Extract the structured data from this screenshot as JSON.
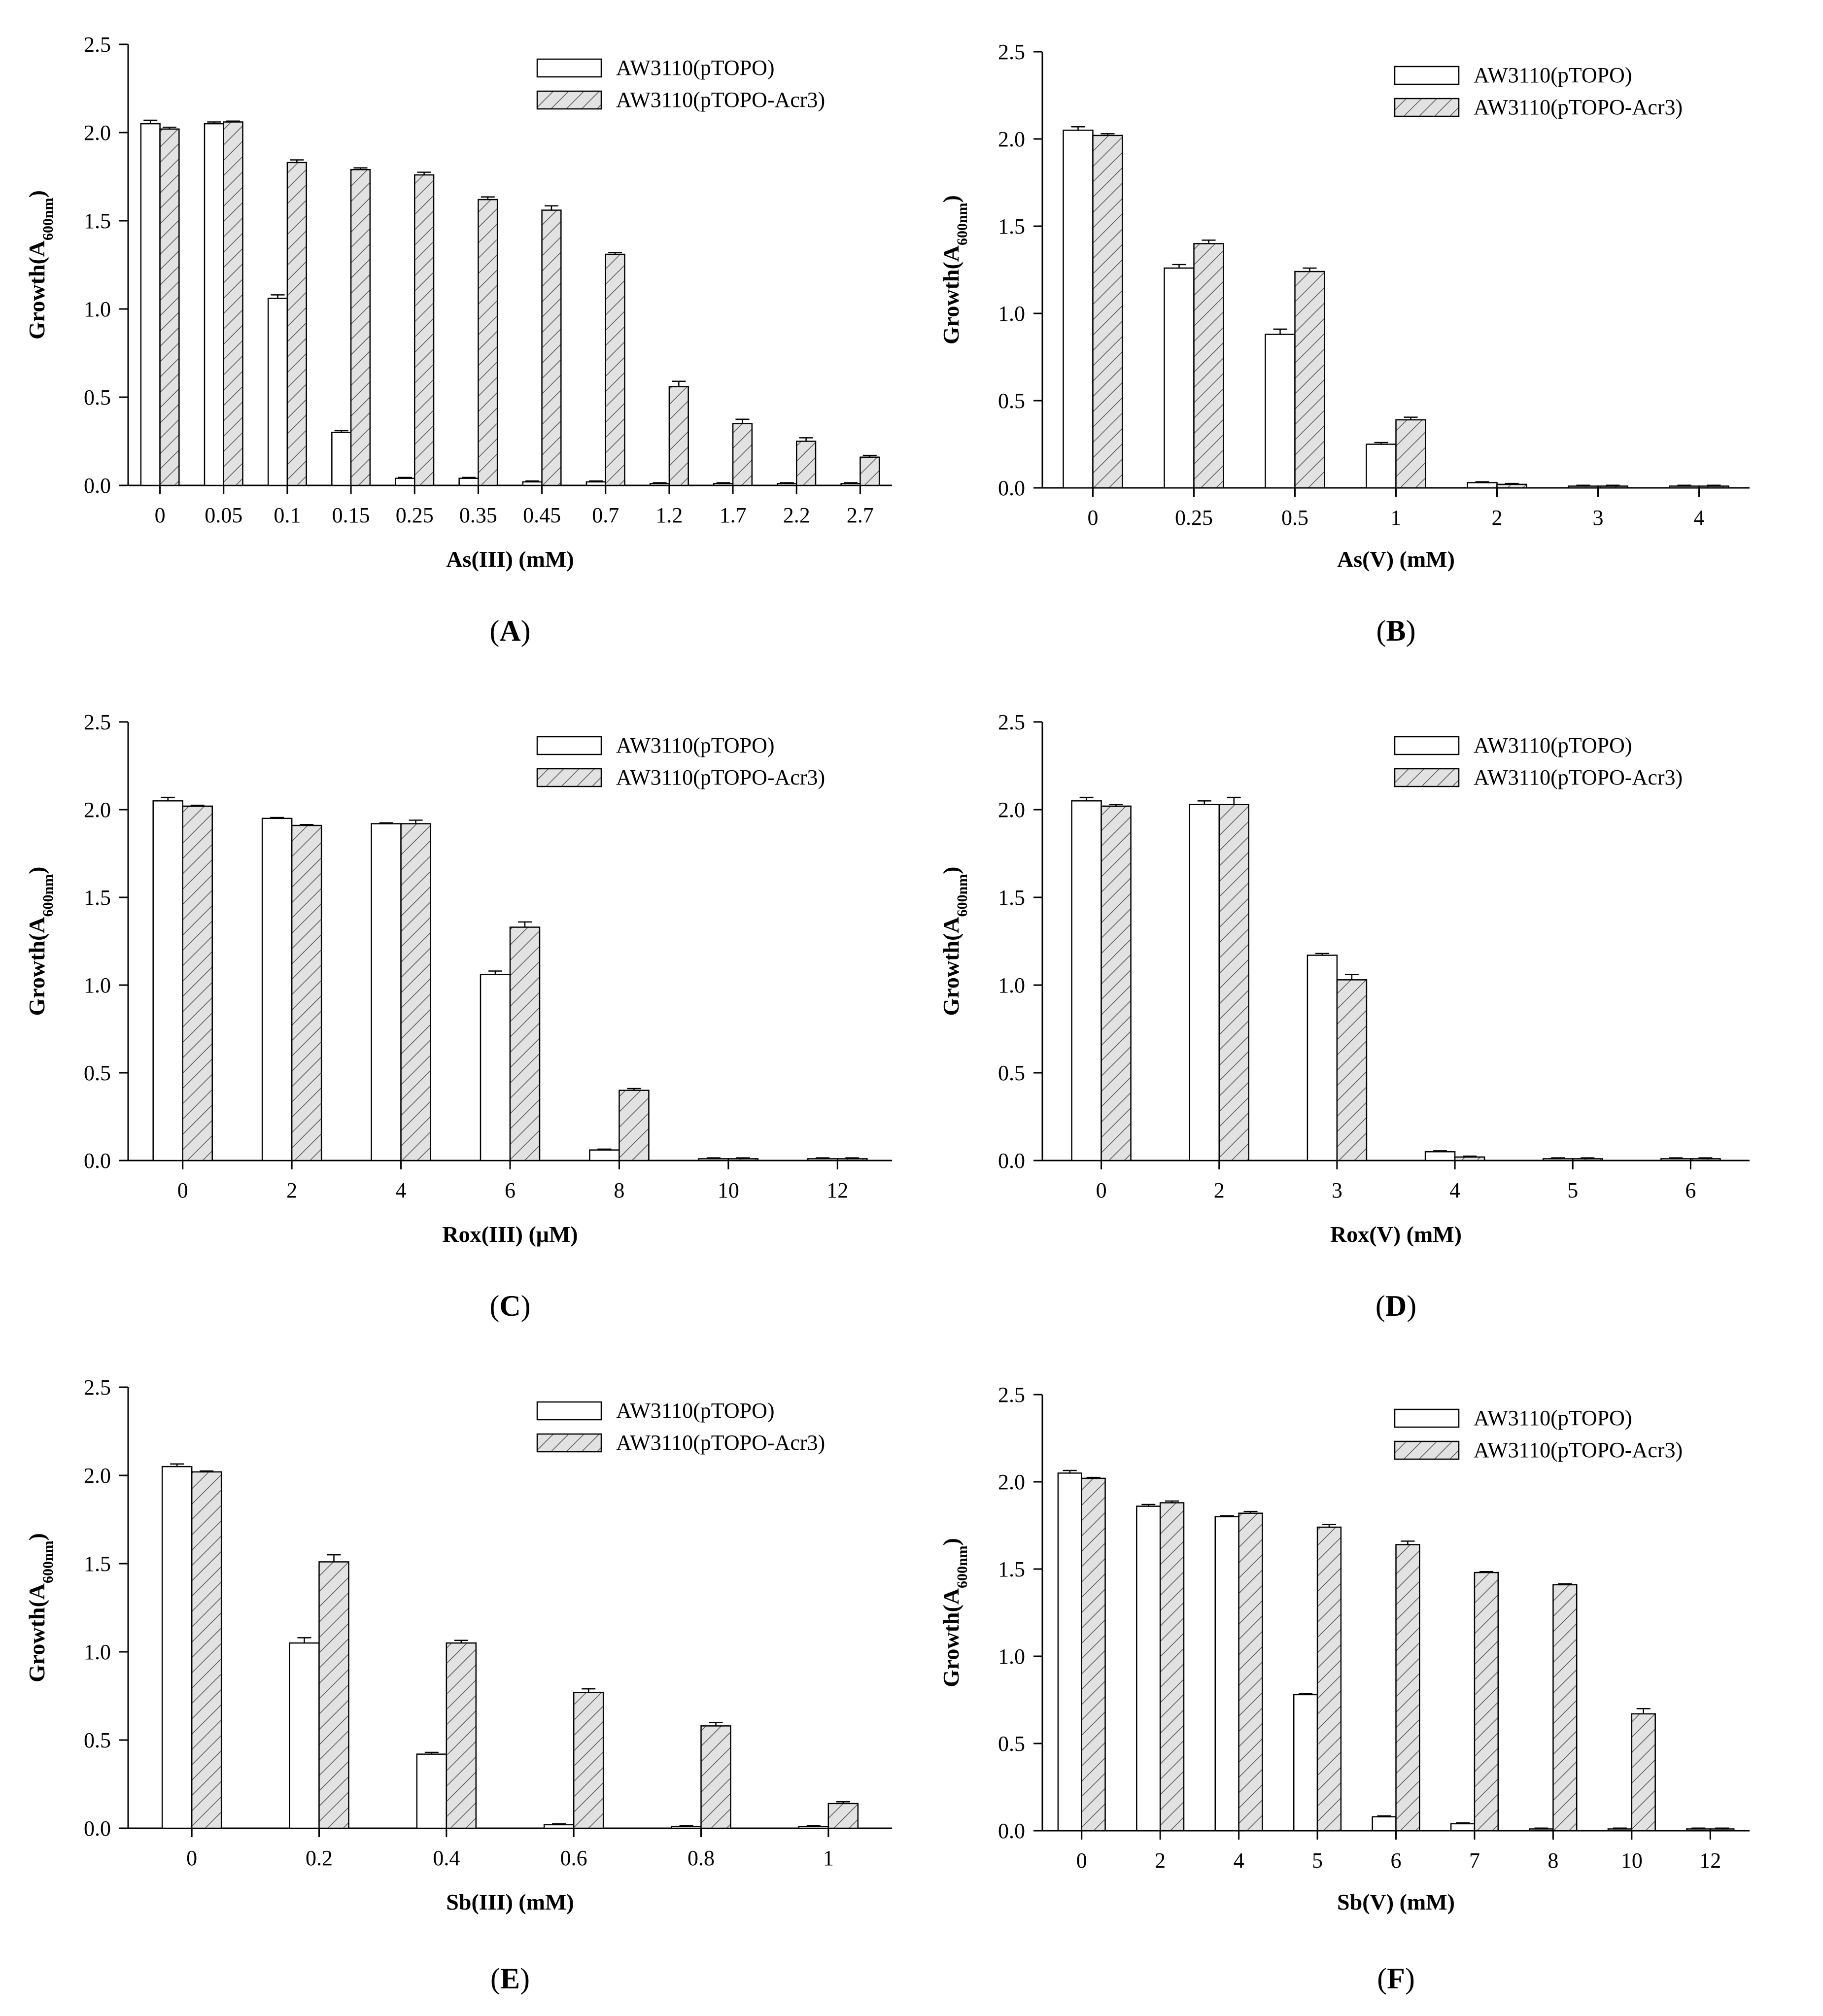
{
  "figure": {
    "legend": {
      "series": [
        "AW3110(pTOPO)",
        "AW3110(pTOPO-Acr3)"
      ]
    },
    "ylabel_main": "Growth(A",
    "ylabel_sub": "600nm",
    "ylabel_close": ")"
  },
  "chart_data": [
    {
      "panel": "A",
      "panel_label_pre": "(",
      "panel_label_letter": "A",
      "panel_label_post": ")",
      "type": "bar",
      "xlabel": "As(III) (mM)",
      "ylabel": "Growth(A600nm)",
      "ylim": [
        0,
        2.5
      ],
      "yticks": [
        "0.0",
        "0.5",
        "1.0",
        "1.5",
        "2.0",
        "2.5"
      ],
      "categories": [
        "0",
        "0.05",
        "0.1",
        "0.15",
        "0.25",
        "0.35",
        "0.45",
        "0.7",
        "1.2",
        "1.7",
        "2.2",
        "2.7"
      ],
      "series": [
        {
          "name": "AW3110(pTOPO)",
          "values": [
            2.05,
            2.05,
            1.06,
            0.3,
            0.04,
            0.04,
            0.02,
            0.02,
            0.01,
            0.01,
            0.01,
            0.01
          ],
          "errors": [
            0.02,
            0.01,
            0.02,
            0.01,
            0.005,
            0.005,
            0.005,
            0.005,
            0.005,
            0.005,
            0.005,
            0.005
          ]
        },
        {
          "name": "AW3110(pTOPO-Acr3)",
          "values": [
            2.02,
            2.06,
            1.83,
            1.79,
            1.76,
            1.62,
            1.56,
            1.31,
            0.56,
            0.35,
            0.25,
            0.16
          ],
          "errors": [
            0.01,
            0.005,
            0.015,
            0.01,
            0.015,
            0.015,
            0.025,
            0.01,
            0.03,
            0.025,
            0.02,
            0.01
          ]
        }
      ]
    },
    {
      "panel": "B",
      "panel_label_pre": "(",
      "panel_label_letter": "B",
      "panel_label_post": ")",
      "type": "bar",
      "xlabel": "As(V) (mM)",
      "ylabel": "Growth(A600nm)",
      "ylim": [
        0,
        2.5
      ],
      "yticks": [
        "0.0",
        "0.5",
        "1.0",
        "1.5",
        "2.0",
        "2.5"
      ],
      "categories": [
        "0",
        "0.25",
        "0.5",
        "1",
        "2",
        "3",
        "4"
      ],
      "series": [
        {
          "name": "AW3110(pTOPO)",
          "values": [
            2.05,
            1.26,
            0.88,
            0.25,
            0.03,
            0.01,
            0.01
          ],
          "errors": [
            0.02,
            0.02,
            0.03,
            0.01,
            0.005,
            0.005,
            0.005
          ]
        },
        {
          "name": "AW3110(pTOPO-Acr3)",
          "values": [
            2.02,
            1.4,
            1.24,
            0.39,
            0.02,
            0.01,
            0.01
          ],
          "errors": [
            0.01,
            0.02,
            0.02,
            0.015,
            0.005,
            0.005,
            0.005
          ]
        }
      ]
    },
    {
      "panel": "C",
      "panel_label_pre": "(",
      "panel_label_letter": "C",
      "panel_label_post": ")",
      "type": "bar",
      "xlabel": "Rox(III) (μM)",
      "ylabel": "Growth(A600nm)",
      "ylim": [
        0,
        2.5
      ],
      "yticks": [
        "0.0",
        "0.5",
        "1.0",
        "1.5",
        "2.0",
        "2.5"
      ],
      "categories": [
        "0",
        "2",
        "4",
        "6",
        "8",
        "10",
        "12"
      ],
      "series": [
        {
          "name": "AW3110(pTOPO)",
          "values": [
            2.05,
            1.95,
            1.92,
            1.06,
            0.06,
            0.01,
            0.01
          ],
          "errors": [
            0.02,
            0.005,
            0.005,
            0.02,
            0.005,
            0.005,
            0.005
          ]
        },
        {
          "name": "AW3110(pTOPO-Acr3)",
          "values": [
            2.02,
            1.91,
            1.92,
            1.33,
            0.4,
            0.01,
            0.01
          ],
          "errors": [
            0.005,
            0.005,
            0.02,
            0.03,
            0.01,
            0.005,
            0.005
          ]
        }
      ]
    },
    {
      "panel": "D",
      "panel_label_pre": "(",
      "panel_label_letter": "D",
      "panel_label_post": ")",
      "type": "bar",
      "xlabel": "Rox(V) (mM)",
      "ylabel": "Growth(A600nm)",
      "ylim": [
        0,
        2.5
      ],
      "yticks": [
        "0.0",
        "0.5",
        "1.0",
        "1.5",
        "2.0",
        "2.5"
      ],
      "categories": [
        "0",
        "2",
        "3",
        "4",
        "5",
        "6"
      ],
      "series": [
        {
          "name": "AW3110(pTOPO)",
          "values": [
            2.05,
            2.03,
            1.17,
            0.05,
            0.01,
            0.01
          ],
          "errors": [
            0.02,
            0.02,
            0.01,
            0.005,
            0.005,
            0.005
          ]
        },
        {
          "name": "AW3110(pTOPO-Acr3)",
          "values": [
            2.02,
            2.03,
            1.03,
            0.02,
            0.01,
            0.01
          ],
          "errors": [
            0.01,
            0.04,
            0.03,
            0.005,
            0.005,
            0.005
          ]
        }
      ]
    },
    {
      "panel": "E",
      "panel_label_pre": "(",
      "panel_label_letter": "E",
      "panel_label_post": ")",
      "type": "bar",
      "xlabel": "Sb(III) (mM)",
      "ylabel": "Growth(A600nm)",
      "ylim": [
        0,
        2.5
      ],
      "yticks": [
        "0.0",
        "0.5",
        "1.0",
        "1.5",
        "2.0",
        "2.5"
      ],
      "categories": [
        "0",
        "0.2",
        "0.4",
        "0.6",
        "0.8",
        "1"
      ],
      "series": [
        {
          "name": "AW3110(pTOPO)",
          "values": [
            2.05,
            1.05,
            0.42,
            0.02,
            0.01,
            0.01
          ],
          "errors": [
            0.015,
            0.03,
            0.01,
            0.005,
            0.005,
            0.005
          ]
        },
        {
          "name": "AW3110(pTOPO-Acr3)",
          "values": [
            2.02,
            1.51,
            1.05,
            0.77,
            0.58,
            0.14
          ],
          "errors": [
            0.005,
            0.04,
            0.015,
            0.02,
            0.02,
            0.01
          ]
        }
      ]
    },
    {
      "panel": "F",
      "panel_label_pre": "(",
      "panel_label_letter": "F",
      "panel_label_post": ")",
      "type": "bar",
      "xlabel": "Sb(V) (mM)",
      "ylabel": "Growth(A600nm)",
      "ylim": [
        0,
        2.5
      ],
      "yticks": [
        "0.0",
        "0.5",
        "1.0",
        "1.5",
        "2.0",
        "2.5"
      ],
      "categories": [
        "0",
        "2",
        "4",
        "5",
        "6",
        "7",
        "8",
        "10",
        "12"
      ],
      "series": [
        {
          "name": "AW3110(pTOPO)",
          "values": [
            2.05,
            1.86,
            1.8,
            0.78,
            0.08,
            0.04,
            0.01,
            0.01,
            0.01
          ],
          "errors": [
            0.015,
            0.01,
            0.005,
            0.005,
            0.005,
            0.005,
            0.005,
            0.005,
            0.005
          ]
        },
        {
          "name": "AW3110(pTOPO-Acr3)",
          "values": [
            2.02,
            1.88,
            1.82,
            1.74,
            1.64,
            1.48,
            1.41,
            0.67,
            0.01
          ],
          "errors": [
            0.005,
            0.01,
            0.01,
            0.015,
            0.02,
            0.005,
            0.005,
            0.03,
            0.005
          ]
        }
      ]
    }
  ]
}
